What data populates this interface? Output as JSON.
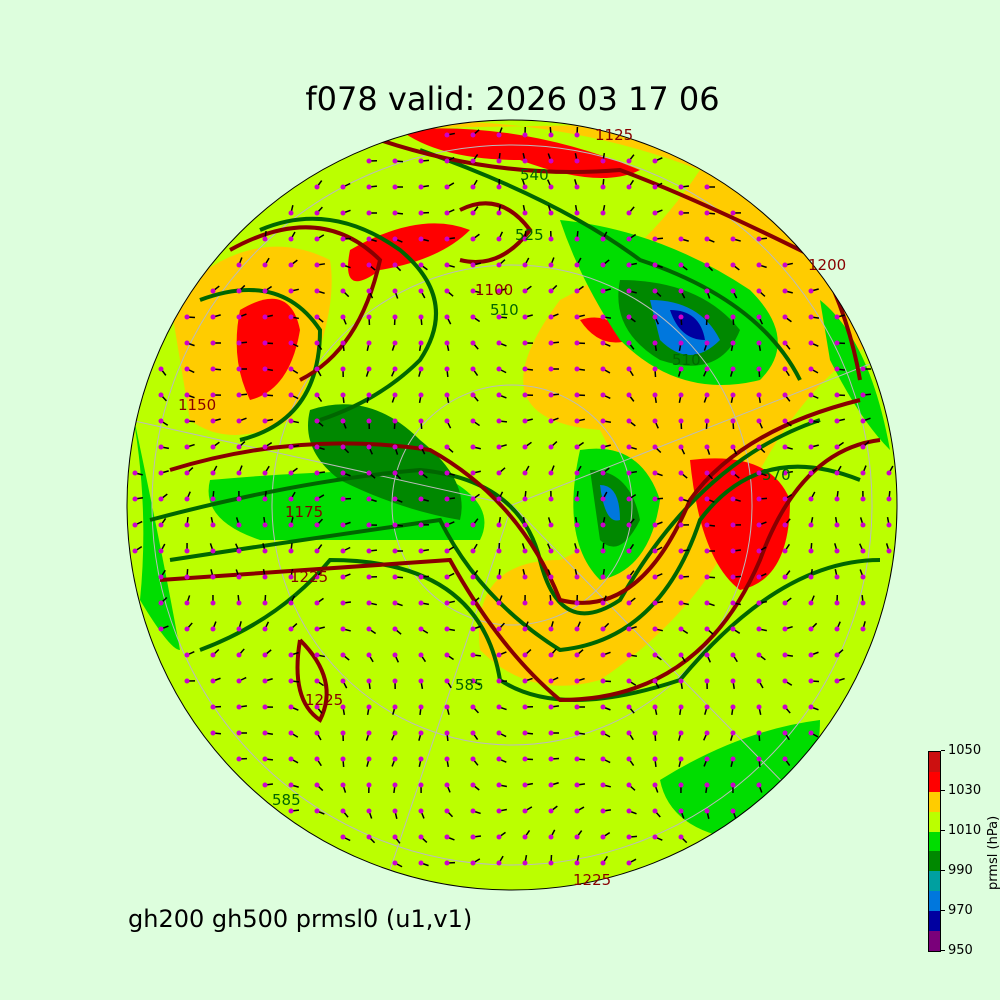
{
  "title": "f078 valid:   2026 03 17 06",
  "subtitle": "gh200 gh500 prmsl0 (u1,v1)",
  "colorbar": {
    "label": "prmsl (hPa)",
    "ticks": [
      "950",
      "970",
      "990",
      "1010",
      "1030",
      "1050"
    ],
    "levels": [
      950,
      960,
      970,
      980,
      990,
      1000,
      1010,
      1020,
      1030,
      1040,
      1050
    ],
    "colors": [
      "#7a007a",
      "#0000a0",
      "#0077dd",
      "#00a0a0",
      "#008800",
      "#00dd00",
      "#bbff00",
      "#ffcc00",
      "#ff0000",
      "#cc1010"
    ]
  },
  "contour_labels": {
    "gh200": [
      "1175",
      "1225",
      "1100",
      "1125",
      "1200",
      "1225",
      "1225",
      "1150"
    ],
    "gh500": [
      "540",
      "525",
      "510",
      "570",
      "585",
      "510",
      "585"
    ]
  },
  "colors": {
    "gh200_line": "#880000",
    "gh500_line": "#006600",
    "wind_dots": "#cc00cc",
    "background": "#ddfedd"
  }
}
